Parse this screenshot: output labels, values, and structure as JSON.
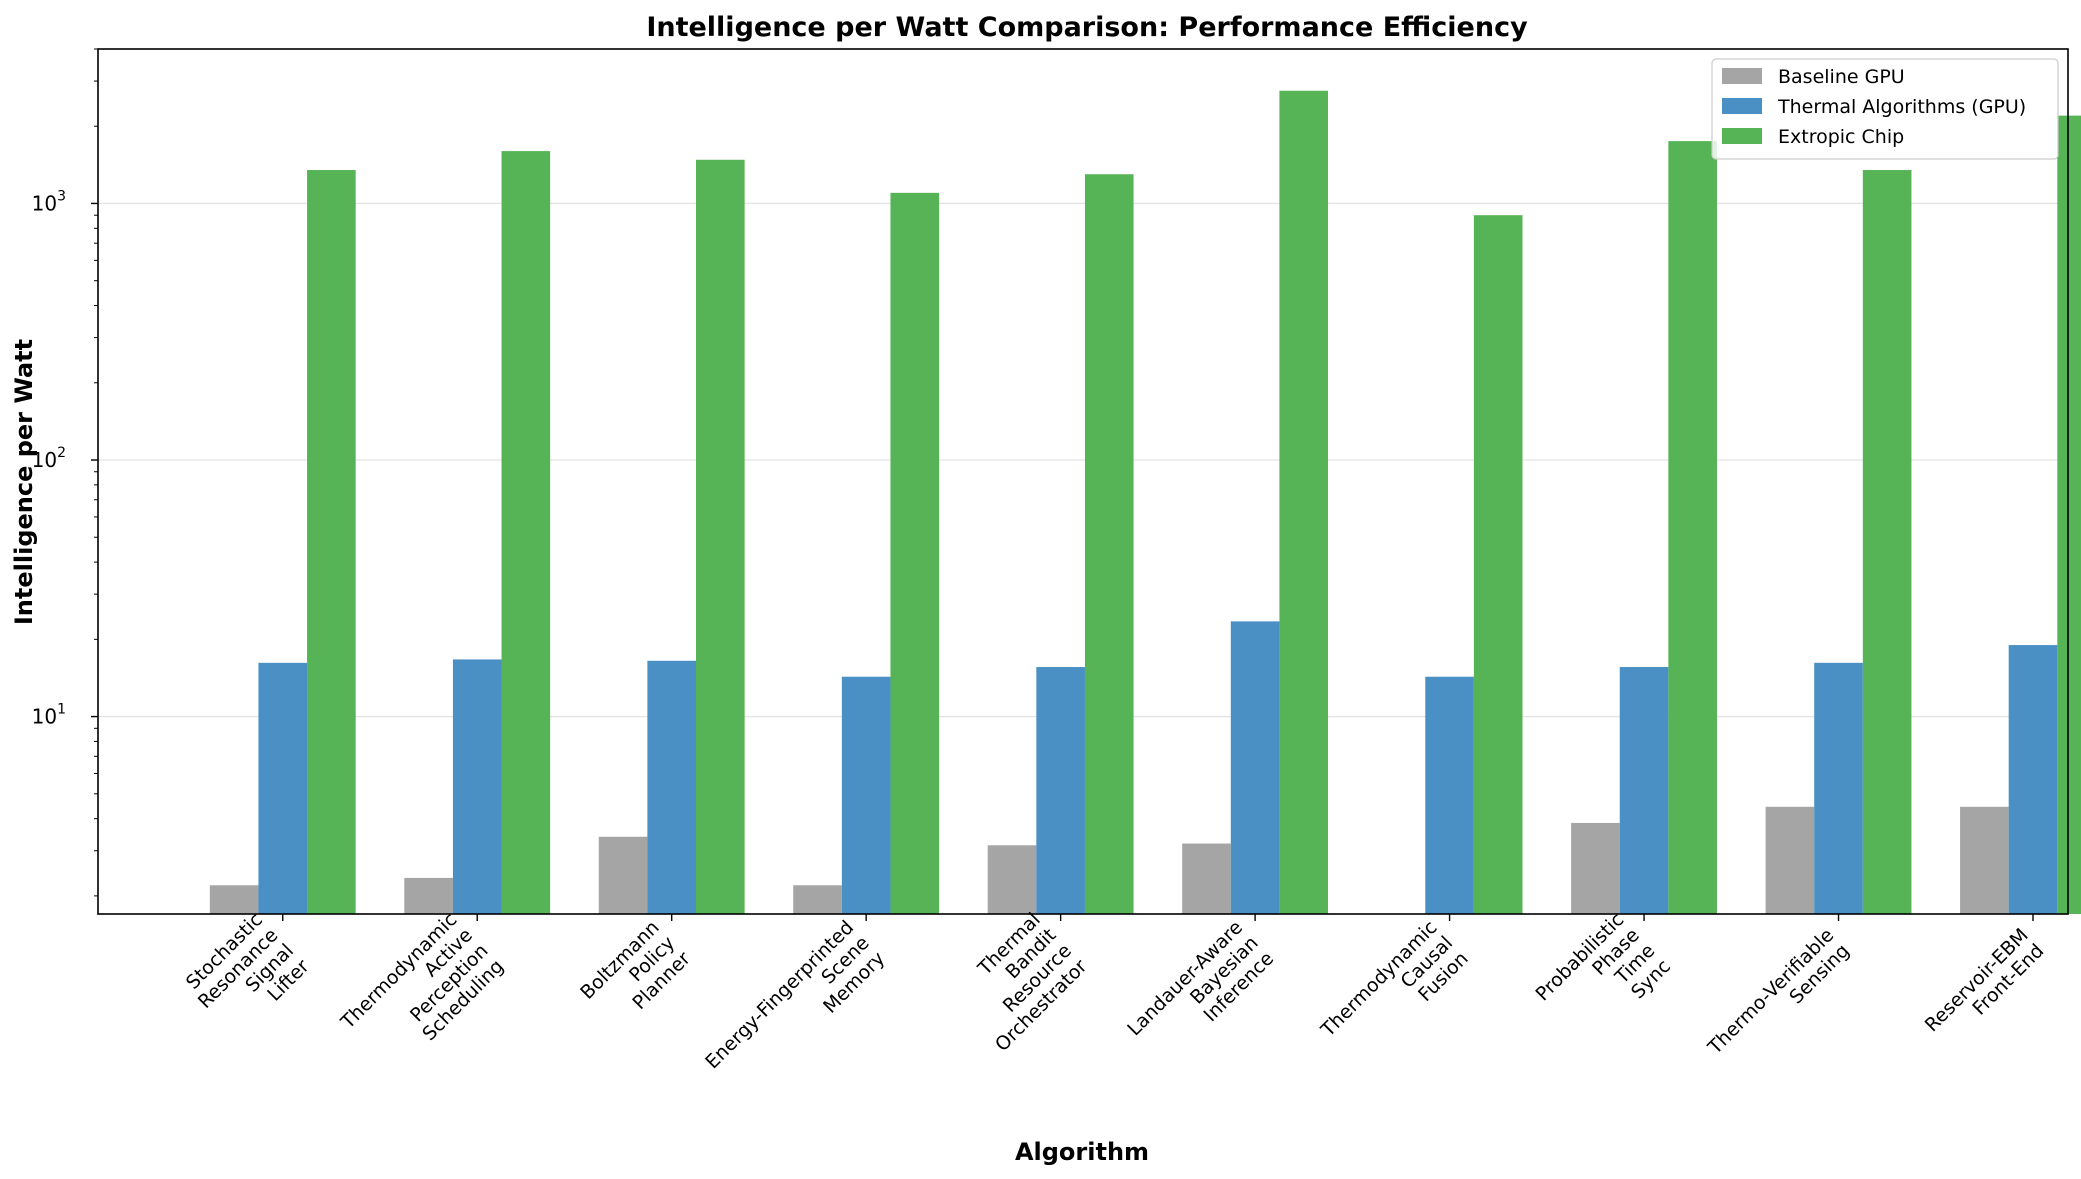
{
  "chart_data": {
    "type": "bar",
    "title": "Intelligence per Watt Comparison: Performance Efficiency",
    "xlabel": "Algorithm",
    "ylabel": "Intelligence per Watt",
    "yscale": "log",
    "ylim": [
      1.7,
      4000
    ],
    "yticks": [
      {
        "value": 10,
        "base": "10",
        "exp": "1"
      },
      {
        "value": 100,
        "base": "10",
        "exp": "2"
      },
      {
        "value": 1000,
        "base": "10",
        "exp": "3"
      }
    ],
    "grid": "horizontal",
    "legend_position": "top-right",
    "categories": [
      [
        "Stochastic",
        "Resonance",
        "Signal",
        "Lifter"
      ],
      [
        "Thermodynamic",
        "Active",
        "Perception",
        "Scheduling"
      ],
      [
        "Boltzmann",
        "Policy",
        "Planner"
      ],
      [
        "Energy-Fingerprinted",
        "Scene",
        "Memory"
      ],
      [
        "Thermal",
        "Bandit",
        "Resource",
        "Orchestrator"
      ],
      [
        "Landauer-Aware",
        "Bayesian",
        "Inference"
      ],
      [
        "Thermodynamic",
        "Causal",
        "Fusion"
      ],
      [
        "Probabilistic",
        "Phase",
        "Time",
        "Sync"
      ],
      [
        "Thermo-Verifiable",
        "Sensing"
      ],
      [
        "Reservoir-EBM",
        "Front-End"
      ]
    ],
    "series": [
      {
        "name": "Baseline GPU",
        "color": "#a5a5a5",
        "values": [
          2.2,
          2.35,
          3.4,
          2.2,
          3.15,
          3.2,
          1.65,
          3.85,
          4.45,
          4.45
        ]
      },
      {
        "name": "Thermal Algorithms (GPU)",
        "color": "#4a90c4",
        "values": [
          16.2,
          16.7,
          16.5,
          14.3,
          15.6,
          23.5,
          14.3,
          15.6,
          16.2,
          19.0
        ]
      },
      {
        "name": "Extropic Chip",
        "color": "#56b356",
        "values": [
          1350,
          1600,
          1480,
          1100,
          1300,
          2750,
          900,
          1750,
          1350,
          2200
        ]
      }
    ]
  }
}
